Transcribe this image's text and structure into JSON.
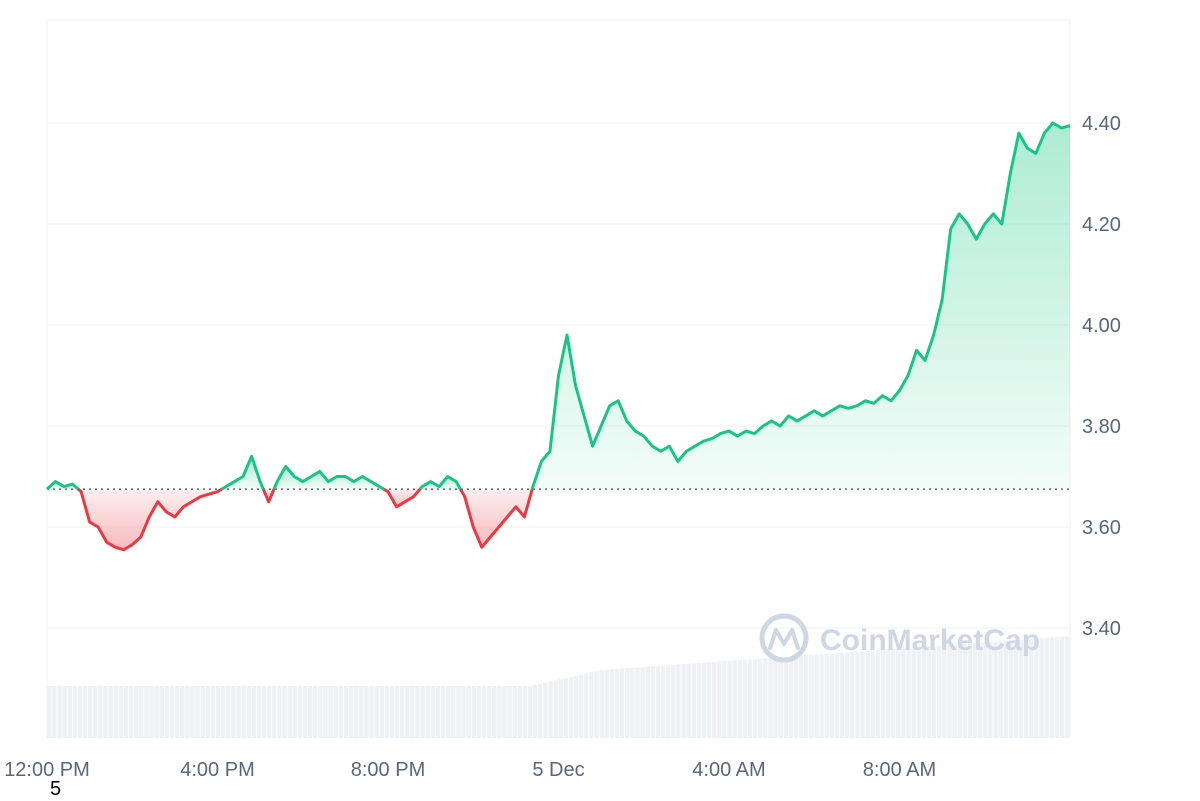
{
  "chart_data": {
    "type": "area",
    "title": "",
    "xlabel": "",
    "ylabel": "",
    "ylim": [
      3.2,
      4.6
    ],
    "yticks": [
      3.4,
      3.6,
      3.8,
      4.0,
      4.2,
      4.4
    ],
    "ytick_labels": [
      "3.40",
      "3.60",
      "3.80",
      "4.00",
      "4.20",
      "4.40"
    ],
    "xticks": [
      {
        "hour": 0,
        "label": "12:00 PM"
      },
      {
        "hour": 4,
        "label": "4:00 PM"
      },
      {
        "hour": 8,
        "label": "8:00 PM"
      },
      {
        "hour": 12,
        "label": "5 Dec"
      },
      {
        "hour": 16,
        "label": "4:00 AM"
      },
      {
        "hour": 20,
        "label": "8:00 AM"
      }
    ],
    "x_unit": "hours since 12:00 PM",
    "xlim": [
      0,
      24
    ],
    "baseline": 3.675,
    "grid": true,
    "colors": {
      "up": "#16c784",
      "down": "#ea3943",
      "grid": "#eff2f5",
      "volume": "#eff2f5",
      "baseline": "#58667e"
    },
    "series": [
      {
        "values_x": [
          0,
          0.2,
          0.4,
          0.6,
          0.8,
          1.0,
          1.2,
          1.4,
          1.6,
          1.8,
          2.0,
          2.2,
          2.4,
          2.6,
          2.8,
          3.0,
          3.2,
          3.4,
          3.6,
          3.8,
          4.0,
          4.2,
          4.4,
          4.6,
          4.8,
          5.0,
          5.2,
          5.4,
          5.6,
          5.8,
          6.0,
          6.2,
          6.4,
          6.6,
          6.8,
          7.0,
          7.2,
          7.4,
          7.6,
          7.8,
          8.0,
          8.2,
          8.4,
          8.6,
          8.8,
          9.0,
          9.2,
          9.4,
          9.6,
          9.8,
          10.0,
          10.2,
          10.4,
          10.6,
          10.8,
          11.0,
          11.2,
          11.4,
          11.6,
          11.8,
          12.0,
          12.2,
          12.4,
          12.6,
          12.8,
          13.0,
          13.2,
          13.4,
          13.6,
          13.8,
          14.0,
          14.2,
          14.4,
          14.6,
          14.8,
          15.0,
          15.2,
          15.4,
          15.6,
          15.8,
          16.0,
          16.2,
          16.4,
          16.6,
          16.8,
          17.0,
          17.2,
          17.4,
          17.6,
          17.8,
          18.0,
          18.2,
          18.4,
          18.6,
          18.8,
          19.0,
          19.2,
          19.4,
          19.6,
          19.8,
          20.0,
          20.2,
          20.4,
          20.6,
          20.8,
          21.0,
          21.2,
          21.4,
          21.6,
          21.8,
          22.0,
          22.2,
          22.4,
          22.6,
          22.8,
          23.0,
          23.2,
          23.4,
          23.6,
          23.8,
          24.0
        ],
        "values_y": [
          3.675,
          3.69,
          3.68,
          3.685,
          3.67,
          3.61,
          3.6,
          3.57,
          3.56,
          3.555,
          3.565,
          3.58,
          3.62,
          3.65,
          3.63,
          3.62,
          3.64,
          3.65,
          3.66,
          3.665,
          3.67,
          3.68,
          3.69,
          3.7,
          3.74,
          3.69,
          3.65,
          3.69,
          3.72,
          3.7,
          3.69,
          3.7,
          3.71,
          3.69,
          3.7,
          3.7,
          3.69,
          3.7,
          3.69,
          3.68,
          3.67,
          3.64,
          3.65,
          3.66,
          3.68,
          3.69,
          3.68,
          3.7,
          3.69,
          3.66,
          3.6,
          3.56,
          3.58,
          3.6,
          3.62,
          3.64,
          3.62,
          3.68,
          3.73,
          3.75,
          3.9,
          3.98,
          3.88,
          3.82,
          3.76,
          3.8,
          3.84,
          3.85,
          3.81,
          3.79,
          3.78,
          3.76,
          3.75,
          3.76,
          3.73,
          3.75,
          3.76,
          3.77,
          3.775,
          3.785,
          3.79,
          3.78,
          3.79,
          3.785,
          3.8,
          3.81,
          3.8,
          3.82,
          3.81,
          3.82,
          3.83,
          3.82,
          3.83,
          3.84,
          3.835,
          3.84,
          3.85,
          3.845,
          3.86,
          3.85,
          3.87,
          3.9,
          3.95,
          3.93,
          3.98,
          4.05,
          4.19,
          4.22,
          4.2,
          4.17,
          4.2,
          4.22,
          4.2,
          4.3,
          4.38,
          4.35,
          4.34,
          4.38,
          4.4,
          4.39,
          4.395
        ]
      }
    ]
  },
  "watermark": {
    "text": "CoinMarketCap"
  },
  "stray_label": "5"
}
